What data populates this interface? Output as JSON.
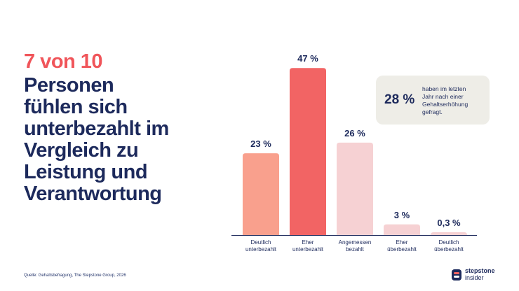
{
  "headline": {
    "accent": "7 von 10",
    "main_lines": [
      "Personen",
      "fühlen sich",
      "unterbezahlt im",
      "Vergleich zu",
      "Leistung und",
      "Verantwortung"
    ]
  },
  "colors": {
    "accent_red": "#f0555a",
    "navy": "#1d2a5c",
    "bars": [
      "#f9a08d",
      "#f26464",
      "#f6d1d3",
      "#f6d1d3",
      "#f6d1d3"
    ],
    "callout_bg": "#eeede7"
  },
  "chart_data": {
    "type": "bar",
    "categories": [
      [
        "Deutlich",
        "unterbezahlt"
      ],
      [
        "Eher",
        "unterbezahlt"
      ],
      [
        "Angemessen",
        "bezahlt"
      ],
      [
        "Eher",
        "überbezahlt"
      ],
      [
        "Deutlich",
        "überbezahlt"
      ]
    ],
    "values": [
      23,
      47,
      26,
      3,
      0.3
    ],
    "value_labels": [
      "23 %",
      "47 %",
      "26 %",
      "3 %",
      "0,3 %"
    ],
    "ylim": [
      0,
      50
    ]
  },
  "callout": {
    "value": "28 %",
    "text_lines": [
      "haben im letzten",
      "Jahr nach einer",
      "Gehaltserhöhung",
      "gefragt."
    ]
  },
  "source": "Quelle: Gehaltsbefragung, The Stepstone Group, 2026",
  "logo": {
    "word1": "stepstone",
    "word2": "insider"
  }
}
